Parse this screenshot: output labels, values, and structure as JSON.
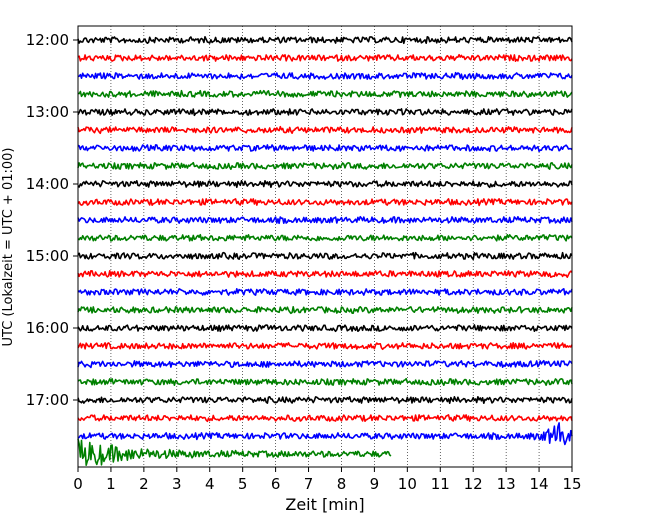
{
  "chart_data": {
    "type": "line",
    "subtype": "helicorder",
    "title": "",
    "xlabel": "Zeit  [min]",
    "ylabel": "UTC (Lokalzeit = UTC + 01:00)",
    "xlim": [
      0,
      15
    ],
    "x_ticks": [
      "0",
      "1",
      "2",
      "3",
      "4",
      "5",
      "6",
      "7",
      "8",
      "9",
      "10",
      "11",
      "12",
      "13",
      "14",
      "15"
    ],
    "y_ticks": [
      "12:00",
      "13:00",
      "14:00",
      "15:00",
      "16:00",
      "17:00"
    ],
    "grid": "vertical dotted",
    "colors": [
      "#000000",
      "#ff0000",
      "#0000ff",
      "#008000"
    ],
    "traces": [
      {
        "start": "12:00",
        "end_min": 15,
        "color": "#000000"
      },
      {
        "start": "12:15",
        "end_min": 15,
        "color": "#ff0000"
      },
      {
        "start": "12:30",
        "end_min": 15,
        "color": "#0000ff"
      },
      {
        "start": "12:45",
        "end_min": 15,
        "color": "#008000"
      },
      {
        "start": "13:00",
        "end_min": 15,
        "color": "#000000"
      },
      {
        "start": "13:15",
        "end_min": 15,
        "color": "#ff0000"
      },
      {
        "start": "13:30",
        "end_min": 15,
        "color": "#0000ff"
      },
      {
        "start": "13:45",
        "end_min": 15,
        "color": "#008000"
      },
      {
        "start": "14:00",
        "end_min": 15,
        "color": "#000000"
      },
      {
        "start": "14:15",
        "end_min": 15,
        "color": "#ff0000"
      },
      {
        "start": "14:30",
        "end_min": 15,
        "color": "#0000ff"
      },
      {
        "start": "14:45",
        "end_min": 15,
        "color": "#008000"
      },
      {
        "start": "15:00",
        "end_min": 15,
        "color": "#000000"
      },
      {
        "start": "15:15",
        "end_min": 15,
        "color": "#ff0000"
      },
      {
        "start": "15:30",
        "end_min": 15,
        "color": "#0000ff"
      },
      {
        "start": "15:45",
        "end_min": 15,
        "color": "#008000"
      },
      {
        "start": "16:00",
        "end_min": 15,
        "color": "#000000"
      },
      {
        "start": "16:15",
        "end_min": 15,
        "color": "#ff0000"
      },
      {
        "start": "16:30",
        "end_min": 15,
        "color": "#0000ff"
      },
      {
        "start": "16:45",
        "end_min": 15,
        "color": "#008000"
      },
      {
        "start": "17:00",
        "end_min": 15,
        "color": "#000000"
      },
      {
        "start": "17:15",
        "end_min": 15,
        "color": "#ff0000"
      },
      {
        "start": "17:30",
        "end_min": 15,
        "color": "#0000ff",
        "event_at_min": 14.6
      },
      {
        "start": "17:45",
        "end_min": 9.5,
        "color": "#008000",
        "event_at_min": 0.5
      }
    ]
  }
}
